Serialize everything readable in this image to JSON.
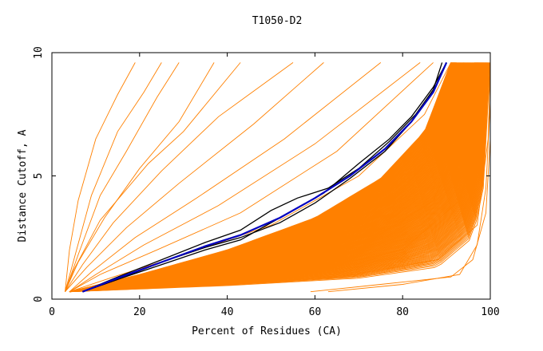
{
  "chart_data": {
    "type": "line",
    "title": "T1050-D2",
    "xlabel": "Percent of Residues (CA)",
    "ylabel": "Distance Cutoff, A",
    "xlim": [
      0,
      100
    ],
    "ylim": [
      0,
      10
    ],
    "x_ticks": [
      "0",
      "20",
      "40",
      "60",
      "80",
      "100"
    ],
    "y_ticks": [
      "0",
      "5",
      "10"
    ],
    "grid": false,
    "legend": "none",
    "colors": {
      "background": "#ffffff",
      "axis": "#000000",
      "other_models": "#ff8000",
      "highlight_models": "#000000",
      "reference_model": "#0000c0"
    },
    "series": [
      {
        "role": "highlight",
        "color": "#000000",
        "points": [
          [
            7,
            0.3
          ],
          [
            15,
            0.8
          ],
          [
            25,
            1.5
          ],
          [
            35,
            2.1
          ],
          [
            43,
            2.5
          ],
          [
            52,
            3.1
          ],
          [
            60,
            3.9
          ],
          [
            68,
            4.9
          ],
          [
            76,
            6.0
          ],
          [
            82,
            7.2
          ],
          [
            87,
            8.4
          ],
          [
            90,
            9.6
          ]
        ]
      },
      {
        "role": "highlight",
        "color": "#000000",
        "points": [
          [
            7,
            0.3
          ],
          [
            15,
            0.9
          ],
          [
            25,
            1.6
          ],
          [
            35,
            2.3
          ],
          [
            43,
            2.8
          ],
          [
            50,
            3.6
          ],
          [
            56,
            4.1
          ],
          [
            63,
            4.5
          ],
          [
            70,
            5.3
          ],
          [
            77,
            6.4
          ],
          [
            83,
            7.5
          ],
          [
            87,
            8.5
          ],
          [
            89,
            9.6
          ]
        ]
      },
      {
        "role": "highlight",
        "color": "#000000",
        "points": [
          [
            7,
            0.3
          ],
          [
            15,
            0.8
          ],
          [
            25,
            1.4
          ],
          [
            35,
            2.0
          ],
          [
            43,
            2.4
          ],
          [
            52,
            3.3
          ],
          [
            62,
            4.3
          ],
          [
            70,
            5.5
          ],
          [
            77,
            6.5
          ],
          [
            82,
            7.4
          ],
          [
            87,
            8.6
          ],
          [
            90,
            9.6
          ]
        ]
      },
      {
        "role": "reference",
        "color": "#0000c0",
        "points": [
          [
            7,
            0.3
          ],
          [
            15,
            0.85
          ],
          [
            25,
            1.5
          ],
          [
            35,
            2.15
          ],
          [
            43,
            2.6
          ],
          [
            52,
            3.3
          ],
          [
            60,
            4.1
          ],
          [
            68,
            5.0
          ],
          [
            76,
            6.1
          ],
          [
            82,
            7.2
          ],
          [
            87,
            8.4
          ],
          [
            90,
            9.6
          ]
        ]
      },
      {
        "role": "other",
        "color": "#ff8000",
        "points": [
          [
            3,
            0.3
          ],
          [
            4,
            2
          ],
          [
            6,
            4
          ],
          [
            10,
            6.5
          ],
          [
            15,
            8.3
          ],
          [
            19,
            9.6
          ]
        ]
      },
      {
        "role": "other",
        "color": "#ff8000",
        "points": [
          [
            3,
            0.3
          ],
          [
            5,
            1.6
          ],
          [
            9,
            4.2
          ],
          [
            15,
            6.8
          ],
          [
            21,
            8.4
          ],
          [
            25,
            9.6
          ]
        ]
      },
      {
        "role": "other",
        "color": "#ff8000",
        "points": [
          [
            3,
            0.3
          ],
          [
            6,
            1.8
          ],
          [
            11,
            4.2
          ],
          [
            17,
            6.0
          ],
          [
            24,
            8.2
          ],
          [
            29,
            9.6
          ]
        ]
      },
      {
        "role": "other",
        "color": "#ff8000",
        "points": [
          [
            3,
            0.3
          ],
          [
            6,
            1.5
          ],
          [
            12,
            3.3
          ],
          [
            20,
            5.3
          ],
          [
            29,
            7.2
          ],
          [
            37,
            9.6
          ]
        ]
      },
      {
        "role": "other",
        "color": "#ff8000",
        "points": [
          [
            3,
            0.3
          ],
          [
            5,
            1.2
          ],
          [
            11,
            3.2
          ],
          [
            22,
            5.5
          ],
          [
            30,
            6.8
          ],
          [
            43,
            9.6
          ]
        ]
      },
      {
        "role": "other",
        "color": "#ff8000",
        "points": [
          [
            3,
            0.3
          ],
          [
            7,
            1.4
          ],
          [
            14,
            3.1
          ],
          [
            25,
            5.2
          ],
          [
            38,
            7.4
          ],
          [
            55,
            9.6
          ]
        ]
      },
      {
        "role": "other",
        "color": "#ff8000",
        "points": [
          [
            3,
            0.3
          ],
          [
            8,
            1.3
          ],
          [
            17,
            2.9
          ],
          [
            29,
            4.7
          ],
          [
            46,
            7.1
          ],
          [
            62,
            9.6
          ]
        ]
      },
      {
        "role": "other",
        "color": "#ff8000",
        "points": [
          [
            4,
            0.3
          ],
          [
            9,
            1.1
          ],
          [
            19,
            2.5
          ],
          [
            33,
            4.1
          ],
          [
            53,
            6.5
          ],
          [
            75,
            9.6
          ]
        ]
      },
      {
        "role": "other",
        "color": "#ff8000",
        "points": [
          [
            4,
            0.3
          ],
          [
            10,
            1.0
          ],
          [
            21,
            2.2
          ],
          [
            38,
            3.8
          ],
          [
            60,
            6.3
          ],
          [
            84,
            9.6
          ]
        ]
      },
      {
        "role": "other",
        "color": "#ff8000",
        "points": [
          [
            4,
            0.3
          ],
          [
            11,
            1.0
          ],
          [
            24,
            2.0
          ],
          [
            43,
            3.5
          ],
          [
            65,
            6.0
          ],
          [
            87,
            9.6
          ]
        ]
      },
      {
        "role": "other",
        "color": "#ff8000",
        "points": [
          [
            4,
            0.3
          ],
          [
            14,
            0.9
          ],
          [
            30,
            1.8
          ],
          [
            50,
            3.0
          ],
          [
            70,
            5.0
          ],
          [
            85,
            7.5
          ],
          [
            91,
            9.6
          ]
        ]
      },
      {
        "role": "other",
        "color": "#ff8000",
        "points": [
          [
            4,
            0.3
          ],
          [
            20,
            0.8
          ],
          [
            40,
            1.5
          ],
          [
            60,
            2.5
          ],
          [
            78,
            4.0
          ],
          [
            90,
            6.5
          ],
          [
            94,
            9.6
          ]
        ]
      },
      {
        "role": "other",
        "color": "#ff8000",
        "points": [
          [
            4,
            0.3
          ],
          [
            25,
            0.7
          ],
          [
            50,
            1.3
          ],
          [
            72,
            2.3
          ],
          [
            87,
            4.0
          ],
          [
            95,
            7.0
          ],
          [
            97,
            9.6
          ]
        ]
      },
      {
        "role": "other",
        "color": "#ff8000",
        "points": [
          [
            4,
            0.3
          ],
          [
            30,
            0.6
          ],
          [
            58,
            1.1
          ],
          [
            80,
            2.0
          ],
          [
            93,
            4.0
          ],
          [
            98,
            7.5
          ],
          [
            99,
            9.6
          ]
        ]
      },
      {
        "role": "other",
        "color": "#ff8000",
        "points": [
          [
            4,
            0.3
          ],
          [
            35,
            0.55
          ],
          [
            65,
            0.9
          ],
          [
            88,
            1.6
          ],
          [
            97,
            3.0
          ],
          [
            99.5,
            6.5
          ],
          [
            100,
            9.6
          ]
        ]
      },
      {
        "role": "other",
        "color": "#ff8000",
        "points": [
          [
            59,
            0.3
          ],
          [
            75,
            0.6
          ],
          [
            91,
            0.9
          ],
          [
            96,
            1.6
          ],
          [
            99,
            3.5
          ],
          [
            100,
            6.5
          ],
          [
            100,
            9.6
          ]
        ]
      },
      {
        "role": "other",
        "color": "#ff8000",
        "points": [
          [
            63,
            0.3
          ],
          [
            80,
            0.6
          ],
          [
            93,
            1.0
          ],
          [
            97,
            2.2
          ],
          [
            99,
            4.5
          ],
          [
            100,
            8.0
          ],
          [
            100,
            9.6
          ]
        ]
      }
    ],
    "bands": [
      {
        "role": "other",
        "color": "#ff8000",
        "count": 200,
        "lower": [
          [
            4,
            0.3
          ],
          [
            40,
            0.55
          ],
          [
            70,
            0.85
          ],
          [
            88,
            1.3
          ],
          [
            96,
            2.5
          ],
          [
            99,
            5.0
          ],
          [
            100,
            9.6
          ]
        ],
        "upper": [
          [
            4,
            0.3
          ],
          [
            20,
            1.0
          ],
          [
            40,
            2.0
          ],
          [
            60,
            3.3
          ],
          [
            75,
            4.9
          ],
          [
            85,
            6.8
          ],
          [
            91,
            9.6
          ]
        ]
      }
    ]
  }
}
